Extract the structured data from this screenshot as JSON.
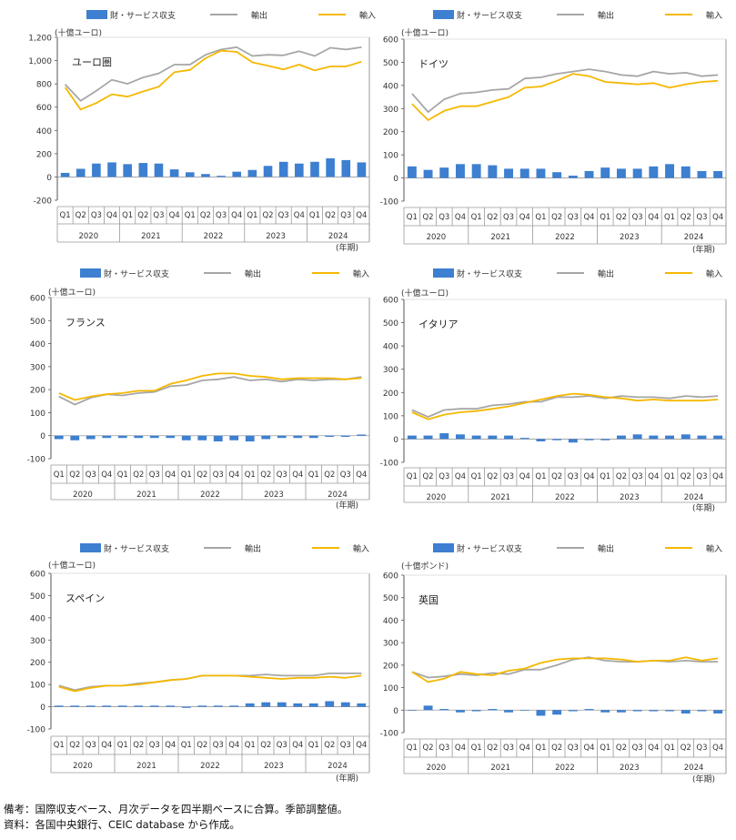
{
  "legend": {
    "balance": "財・サービス収支",
    "exports": "輸出",
    "imports": "輸入"
  },
  "colors": {
    "balance": "#3d7fd0",
    "exports": "#a6a6a6",
    "imports": "#f5b800",
    "axis": "#555555",
    "text": "#333333"
  },
  "quarters": [
    "Q1",
    "Q2",
    "Q3",
    "Q4",
    "Q1",
    "Q2",
    "Q3",
    "Q4",
    "Q1",
    "Q2",
    "Q3",
    "Q4",
    "Q1",
    "Q2",
    "Q3",
    "Q4",
    "Q1",
    "Q2",
    "Q3",
    "Q4"
  ],
  "years": [
    "2020",
    "2021",
    "2022",
    "2023",
    "2024"
  ],
  "year_unit": "(年期)",
  "chart_data": [
    {
      "type": "bar+line",
      "title": "ユーロ圏",
      "unit": "(十億ユーロ)",
      "ylim": [
        -200,
        1200
      ],
      "yticks": [
        "-200",
        "0",
        "200",
        "400",
        "600",
        "800",
        "1,000",
        "1,200"
      ],
      "ytick_values": [
        -200,
        0,
        200,
        400,
        600,
        800,
        1000,
        1200
      ],
      "series": [
        {
          "name": "財・サービス収支",
          "kind": "bar",
          "values": [
            35,
            70,
            115,
            125,
            110,
            120,
            115,
            65,
            40,
            25,
            10,
            45,
            60,
            95,
            130,
            115,
            130,
            160,
            145,
            125
          ]
        },
        {
          "name": "輸出",
          "kind": "line",
          "values": [
            795,
            655,
            740,
            835,
            800,
            855,
            890,
            965,
            965,
            1050,
            1095,
            1115,
            1040,
            1050,
            1045,
            1080,
            1040,
            1110,
            1095,
            1115
          ]
        },
        {
          "name": "輸入",
          "kind": "line",
          "values": [
            770,
            580,
            635,
            710,
            690,
            735,
            775,
            900,
            920,
            1020,
            1085,
            1075,
            985,
            955,
            925,
            965,
            915,
            950,
            950,
            990
          ]
        }
      ]
    },
    {
      "type": "bar+line",
      "title": "ドイツ",
      "unit": "(十億ユーロ)",
      "ylim": [
        -100,
        600
      ],
      "yticks": [
        "-100",
        "0",
        "100",
        "200",
        "300",
        "400",
        "500",
        "600"
      ],
      "ytick_values": [
        -100,
        0,
        100,
        200,
        300,
        400,
        500,
        600
      ],
      "series": [
        {
          "name": "財・サービス収支",
          "kind": "bar",
          "values": [
            50,
            35,
            45,
            60,
            60,
            55,
            40,
            40,
            40,
            25,
            10,
            30,
            45,
            40,
            40,
            50,
            60,
            50,
            30,
            30
          ]
        },
        {
          "name": "輸出",
          "kind": "line",
          "values": [
            365,
            285,
            340,
            365,
            370,
            380,
            385,
            430,
            435,
            450,
            460,
            470,
            460,
            445,
            440,
            460,
            450,
            455,
            440,
            445
          ]
        },
        {
          "name": "輸入",
          "kind": "line",
          "values": [
            320,
            250,
            290,
            310,
            310,
            330,
            350,
            390,
            395,
            420,
            450,
            440,
            415,
            410,
            405,
            410,
            390,
            405,
            415,
            420
          ]
        }
      ]
    },
    {
      "type": "bar+line",
      "title": "フランス",
      "unit": "(十億ユーロ)",
      "ylim": [
        -100,
        600
      ],
      "yticks": [
        "-100",
        "0",
        "100",
        "200",
        "300",
        "400",
        "500",
        "600"
      ],
      "ytick_values": [
        -100,
        0,
        100,
        200,
        300,
        400,
        500,
        600
      ],
      "series": [
        {
          "name": "財・サービス収支",
          "kind": "bar",
          "values": [
            -15,
            -20,
            -15,
            -10,
            -10,
            -10,
            -10,
            -10,
            -20,
            -20,
            -25,
            -20,
            -25,
            -15,
            -10,
            -10,
            -10,
            -5,
            -5,
            5
          ]
        },
        {
          "name": "輸出",
          "kind": "line",
          "values": [
            170,
            135,
            165,
            180,
            175,
            185,
            190,
            215,
            220,
            240,
            245,
            255,
            240,
            245,
            235,
            245,
            240,
            245,
            245,
            255
          ]
        },
        {
          "name": "輸入",
          "kind": "line",
          "values": [
            185,
            155,
            170,
            180,
            185,
            195,
            195,
            225,
            240,
            260,
            270,
            270,
            260,
            255,
            245,
            250,
            250,
            250,
            245,
            250
          ]
        }
      ]
    },
    {
      "type": "bar+line",
      "title": "イタリア",
      "unit": "(十億ユーロ)",
      "ylim": [
        -100,
        600
      ],
      "yticks": [
        "-100",
        "0",
        "100",
        "200",
        "300",
        "400",
        "500",
        "600"
      ],
      "ytick_values": [
        -100,
        0,
        100,
        200,
        300,
        400,
        500,
        600
      ],
      "series": [
        {
          "name": "財・サービス収支",
          "kind": "bar",
          "values": [
            15,
            15,
            25,
            20,
            15,
            15,
            15,
            5,
            -10,
            -5,
            -15,
            -5,
            -5,
            15,
            20,
            15,
            15,
            20,
            15,
            15
          ]
        },
        {
          "name": "輸出",
          "kind": "line",
          "values": [
            125,
            95,
            125,
            130,
            130,
            145,
            150,
            160,
            160,
            180,
            180,
            185,
            175,
            185,
            180,
            180,
            175,
            185,
            180,
            185
          ]
        },
        {
          "name": "輸入",
          "kind": "line",
          "values": [
            115,
            85,
            105,
            115,
            120,
            130,
            140,
            155,
            170,
            185,
            195,
            190,
            180,
            175,
            165,
            170,
            165,
            165,
            165,
            170
          ]
        }
      ]
    },
    {
      "type": "bar+line",
      "title": "スペイン",
      "unit": "(十億ユーロ)",
      "ylim": [
        -100,
        600
      ],
      "yticks": [
        "-100",
        "0",
        "100",
        "200",
        "300",
        "400",
        "500",
        "600"
      ],
      "ytick_values": [
        -100,
        0,
        100,
        200,
        300,
        400,
        500,
        600
      ],
      "series": [
        {
          "name": "財・サービス収支",
          "kind": "bar",
          "values": [
            5,
            5,
            5,
            5,
            5,
            5,
            5,
            5,
            -5,
            5,
            5,
            5,
            15,
            20,
            20,
            15,
            15,
            25,
            20,
            15
          ]
        },
        {
          "name": "輸出",
          "kind": "line",
          "values": [
            95,
            75,
            90,
            95,
            95,
            105,
            110,
            120,
            125,
            140,
            140,
            140,
            140,
            145,
            140,
            140,
            140,
            150,
            150,
            150
          ]
        },
        {
          "name": "輸入",
          "kind": "line",
          "values": [
            90,
            70,
            85,
            95,
            95,
            100,
            110,
            120,
            125,
            140,
            140,
            140,
            135,
            130,
            125,
            130,
            130,
            135,
            130,
            140
          ]
        }
      ]
    },
    {
      "type": "bar+line",
      "title": "英国",
      "unit": "(十億ポンド)",
      "ylim": [
        -100,
        600
      ],
      "yticks": [
        "-100",
        "0",
        "100",
        "200",
        "300",
        "400",
        "500",
        "600"
      ],
      "ytick_values": [
        -100,
        0,
        100,
        200,
        300,
        400,
        500,
        600
      ],
      "series": [
        {
          "name": "財・サービス収支",
          "kind": "bar",
          "values": [
            0,
            20,
            5,
            -10,
            -5,
            5,
            -10,
            0,
            -25,
            -20,
            -5,
            5,
            -10,
            -10,
            -5,
            -5,
            -5,
            -15,
            -5,
            -15
          ]
        },
        {
          "name": "輸出",
          "kind": "line",
          "values": [
            170,
            145,
            150,
            160,
            155,
            165,
            160,
            180,
            180,
            200,
            225,
            235,
            220,
            215,
            215,
            220,
            215,
            220,
            215,
            215
          ]
        },
        {
          "name": "輸入",
          "kind": "line",
          "values": [
            170,
            125,
            140,
            170,
            160,
            155,
            175,
            185,
            210,
            225,
            230,
            230,
            230,
            225,
            215,
            220,
            220,
            235,
            220,
            230
          ]
        }
      ]
    }
  ],
  "notes": {
    "line1": "備考：国際収支ベース、月次データを四半期ベースに合算。季節調整値。",
    "line2": "資料：各国中央銀行、CEIC database から作成。"
  }
}
